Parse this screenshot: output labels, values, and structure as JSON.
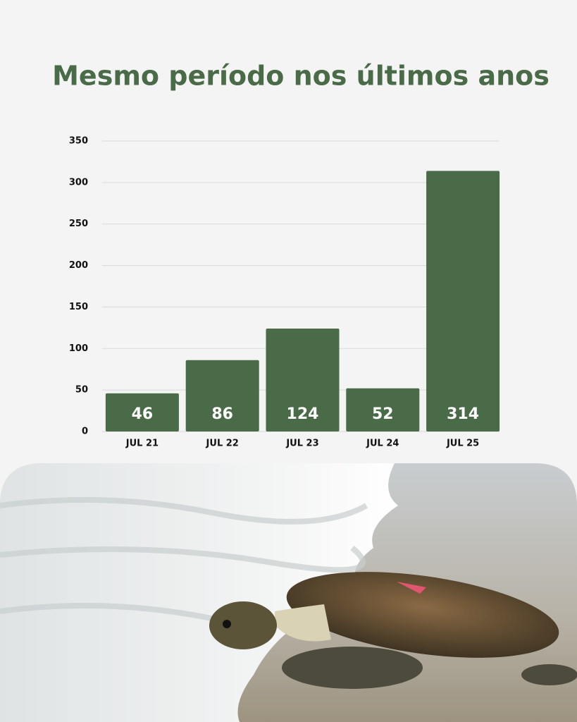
{
  "chart_data": {
    "type": "bar",
    "title": "Mesmo período nos últimos anos",
    "categories": [
      "JUL 21",
      "JUL 22",
      "JUL 23",
      "JUL 24",
      "JUL 25"
    ],
    "values": [
      46,
      86,
      124,
      52,
      314
    ],
    "color": "#4a6b47",
    "ylim": [
      0,
      350
    ],
    "yticks": [
      0,
      50,
      100,
      150,
      200,
      250,
      300,
      350
    ],
    "grid": true
  }
}
